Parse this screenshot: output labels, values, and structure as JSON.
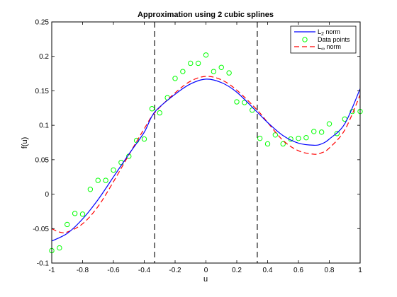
{
  "chart_data": {
    "type": "line",
    "title": "Approximation using 2 cubic splines",
    "xlabel": "u",
    "ylabel": "f(u)",
    "xlim": [
      -1,
      1
    ],
    "ylim": [
      -0.1,
      0.25
    ],
    "xticks": [
      -1,
      -0.8,
      -0.6,
      -0.4,
      -0.2,
      0,
      0.2,
      0.4,
      0.6,
      0.8,
      1
    ],
    "xtick_labels": [
      "-1",
      "-0.8",
      "-0.6",
      "-0.4",
      "-0.2",
      "0",
      "0.2",
      "0.4",
      "0.6",
      "0.8",
      "1"
    ],
    "yticks": [
      -0.1,
      -0.05,
      0,
      0.05,
      0.1,
      0.15,
      0.2,
      0.25
    ],
    "ytick_labels": [
      "-0.1",
      "-0.05",
      "0",
      "0.05",
      "0.1",
      "0.15",
      "0.2",
      "0.25"
    ],
    "grid": false,
    "legend_position": "top-right",
    "knots": [
      -0.333,
      0.333
    ],
    "series": [
      {
        "name_prefix": "L",
        "name_sub": "2",
        "name_suffix": " norm",
        "kind": "line",
        "color": "#0000ff",
        "dash": "",
        "x": [
          -1,
          -0.9,
          -0.8,
          -0.7,
          -0.6,
          -0.5,
          -0.4,
          -0.333,
          -0.2,
          -0.1,
          0,
          0.1,
          0.2,
          0.333,
          0.4,
          0.5,
          0.6,
          0.7,
          0.75,
          0.8,
          0.9,
          1
        ],
        "y": [
          -0.068,
          -0.057,
          -0.036,
          -0.008,
          0.025,
          0.058,
          0.09,
          0.119,
          0.145,
          0.16,
          0.167,
          0.162,
          0.148,
          0.119,
          0.104,
          0.085,
          0.074,
          0.071,
          0.073,
          0.08,
          0.102,
          0.153
        ]
      },
      {
        "name": "Data points",
        "kind": "markers",
        "color": "#00ff00",
        "x": [
          -1,
          -0.95,
          -0.9,
          -0.85,
          -0.8,
          -0.75,
          -0.7,
          -0.65,
          -0.6,
          -0.55,
          -0.5,
          -0.45,
          -0.4,
          -0.35,
          -0.3,
          -0.25,
          -0.2,
          -0.15,
          -0.1,
          -0.05,
          0,
          0.05,
          0.1,
          0.15,
          0.2,
          0.25,
          0.3,
          0.35,
          0.4,
          0.45,
          0.5,
          0.55,
          0.6,
          0.65,
          0.7,
          0.75,
          0.8,
          0.85,
          0.9,
          0.95,
          1
        ],
        "y": [
          -0.082,
          -0.078,
          -0.044,
          -0.028,
          -0.029,
          0.007,
          0.02,
          0.02,
          0.035,
          0.046,
          0.055,
          0.078,
          0.08,
          0.124,
          0.118,
          0.14,
          0.168,
          0.178,
          0.19,
          0.19,
          0.202,
          0.178,
          0.184,
          0.176,
          0.134,
          0.133,
          0.122,
          0.081,
          0.073,
          0.086,
          0.073,
          0.08,
          0.081,
          0.082,
          0.091,
          0.09,
          0.102,
          0.088,
          0.109,
          0.12,
          0.12
        ]
      },
      {
        "name_prefix": "L",
        "name_sub": "∞",
        "name_suffix": " norm",
        "kind": "line",
        "color": "#ff0000",
        "dash": "7,4",
        "x": [
          -1,
          -0.95,
          -0.9,
          -0.8,
          -0.7,
          -0.6,
          -0.5,
          -0.4,
          -0.333,
          -0.2,
          -0.1,
          0,
          0.1,
          0.2,
          0.333,
          0.4,
          0.5,
          0.6,
          0.7,
          0.75,
          0.8,
          0.9,
          1
        ],
        "y": [
          -0.05,
          -0.055,
          -0.055,
          -0.043,
          -0.018,
          0.018,
          0.057,
          0.095,
          0.118,
          0.147,
          0.164,
          0.171,
          0.166,
          0.151,
          0.122,
          0.104,
          0.078,
          0.063,
          0.058,
          0.06,
          0.067,
          0.093,
          0.144
        ]
      }
    ]
  }
}
